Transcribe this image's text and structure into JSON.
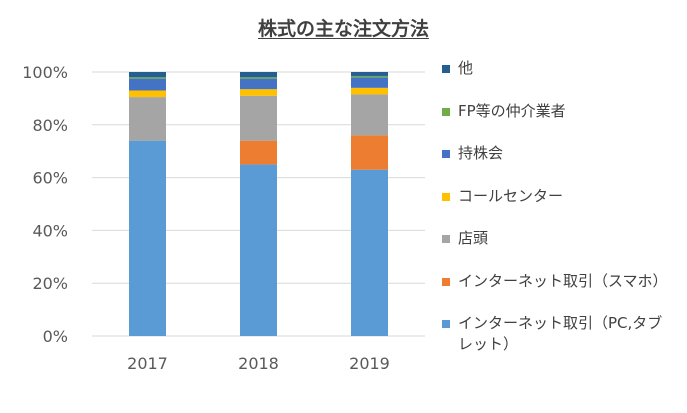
{
  "chart_data": {
    "type": "bar",
    "stacked": true,
    "title": "株式の主な注文方法",
    "categories": [
      "2017",
      "2018",
      "2019"
    ],
    "ylim": [
      0,
      100
    ],
    "yticks": [
      0,
      20,
      40,
      60,
      80,
      100
    ],
    "ytick_labels": [
      "0%",
      "20%",
      "40%",
      "60%",
      "80%",
      "100%"
    ],
    "grid": true,
    "legend_position": "right",
    "series": [
      {
        "name": "インターネット取引（PC,タブレット）",
        "color": "#5B9BD5",
        "values": [
          74,
          65,
          63
        ]
      },
      {
        "name": "インターネット取引（スマホ）",
        "color": "#ED7D31",
        "values": [
          0,
          9,
          13
        ]
      },
      {
        "name": "店頭",
        "color": "#A5A5A5",
        "values": [
          16.5,
          17,
          15.5
        ]
      },
      {
        "name": "コールセンター",
        "color": "#FFC000",
        "values": [
          2.5,
          2.5,
          2.5
        ]
      },
      {
        "name": "持株会",
        "color": "#4472C4",
        "values": [
          4.5,
          4,
          4
        ]
      },
      {
        "name": "FP等の仲介業者",
        "color": "#70AD47",
        "values": [
          0.5,
          0.5,
          0.5
        ]
      },
      {
        "name": "他",
        "color": "#255E91",
        "values": [
          2,
          2,
          1.5
        ]
      }
    ]
  }
}
